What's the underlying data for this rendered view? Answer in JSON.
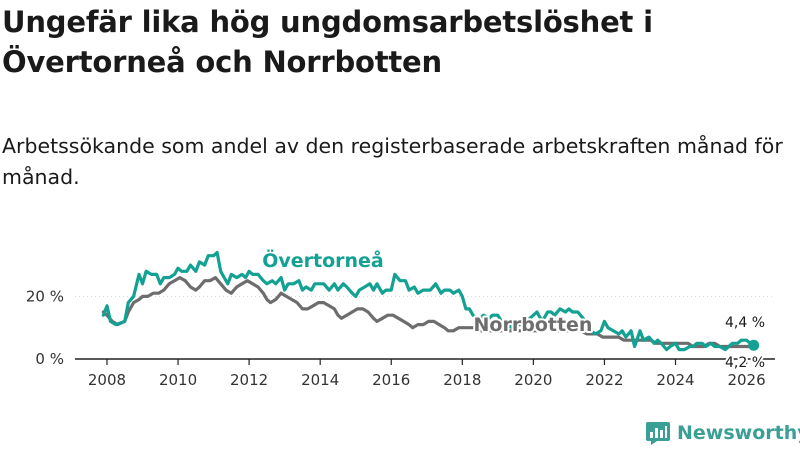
{
  "title": "Ungefär lika hög ungdomsarbetslöshet i Övertorneå och Norrbotten",
  "subtitle": "Arbetssökande som andel av den registerbaserade arbetskraften månad för månad.",
  "brand": "Newsworthy",
  "colors": {
    "overtornea": "#12a192",
    "norrbotten": "#6d6d6d",
    "axis": "#222222",
    "brand": "#3a9f95"
  },
  "chart_data": {
    "type": "line",
    "title": "Ungefär lika hög ungdomsarbetslöshet i Övertorneå och Norrbotten",
    "xlabel": "",
    "ylabel": "",
    "xlim": [
      2007.1,
      2026.8
    ],
    "ylim": [
      0,
      38
    ],
    "x_ticks": [
      2008,
      2010,
      2012,
      2014,
      2016,
      2018,
      2020,
      2022,
      2024,
      2026
    ],
    "x_tick_labels": [
      "2008",
      "2010",
      "2012",
      "2014",
      "2016",
      "2018",
      "2020",
      "2022",
      "2024",
      "2026"
    ],
    "y_ticks": [
      0,
      20
    ],
    "y_tick_labels": [
      "0 %",
      "20 %"
    ],
    "series": [
      {
        "name": "Övertorneå",
        "end_label": "4,4 %",
        "points": [
          [
            2007.9,
            14
          ],
          [
            2008.0,
            17
          ],
          [
            2008.1,
            12
          ],
          [
            2008.25,
            11
          ],
          [
            2008.5,
            12
          ],
          [
            2008.6,
            18
          ],
          [
            2008.75,
            20
          ],
          [
            2008.9,
            27
          ],
          [
            2009.0,
            24
          ],
          [
            2009.1,
            28
          ],
          [
            2009.25,
            27
          ],
          [
            2009.4,
            27
          ],
          [
            2009.5,
            24
          ],
          [
            2009.6,
            26
          ],
          [
            2009.75,
            26
          ],
          [
            2009.9,
            27
          ],
          [
            2010.0,
            29
          ],
          [
            2010.1,
            28
          ],
          [
            2010.25,
            28
          ],
          [
            2010.35,
            30
          ],
          [
            2010.5,
            28
          ],
          [
            2010.6,
            31
          ],
          [
            2010.75,
            30
          ],
          [
            2010.85,
            33
          ],
          [
            2011.0,
            33
          ],
          [
            2011.1,
            34
          ],
          [
            2011.2,
            28
          ],
          [
            2011.3,
            26
          ],
          [
            2011.4,
            24
          ],
          [
            2011.5,
            27
          ],
          [
            2011.65,
            26
          ],
          [
            2011.8,
            27
          ],
          [
            2011.9,
            26
          ],
          [
            2012.0,
            28
          ],
          [
            2012.1,
            27
          ],
          [
            2012.25,
            27
          ],
          [
            2012.4,
            25
          ],
          [
            2012.5,
            24
          ],
          [
            2012.65,
            25
          ],
          [
            2012.75,
            24
          ],
          [
            2012.9,
            26
          ],
          [
            2013.0,
            22
          ],
          [
            2013.1,
            24
          ],
          [
            2013.25,
            24
          ],
          [
            2013.4,
            25
          ],
          [
            2013.5,
            22
          ],
          [
            2013.6,
            23
          ],
          [
            2013.75,
            22
          ],
          [
            2013.85,
            24
          ],
          [
            2014.0,
            24
          ],
          [
            2014.1,
            24
          ],
          [
            2014.25,
            22
          ],
          [
            2014.4,
            24
          ],
          [
            2014.5,
            22
          ],
          [
            2014.65,
            24
          ],
          [
            2014.75,
            23
          ],
          [
            2014.9,
            21
          ],
          [
            2015.0,
            20
          ],
          [
            2015.1,
            22
          ],
          [
            2015.25,
            23
          ],
          [
            2015.4,
            24
          ],
          [
            2015.5,
            22
          ],
          [
            2015.6,
            24
          ],
          [
            2015.75,
            21
          ],
          [
            2015.85,
            22
          ],
          [
            2016.0,
            22
          ],
          [
            2016.1,
            27
          ],
          [
            2016.25,
            25
          ],
          [
            2016.4,
            25
          ],
          [
            2016.5,
            22
          ],
          [
            2016.65,
            23
          ],
          [
            2016.75,
            21
          ],
          [
            2016.9,
            22
          ],
          [
            2017.0,
            22
          ],
          [
            2017.1,
            22
          ],
          [
            2017.25,
            24
          ],
          [
            2017.4,
            21
          ],
          [
            2017.5,
            22
          ],
          [
            2017.65,
            22
          ],
          [
            2017.75,
            21
          ],
          [
            2017.9,
            22
          ],
          [
            2018.0,
            20
          ],
          [
            2018.1,
            16
          ],
          [
            2018.2,
            16
          ],
          [
            2018.3,
            14
          ],
          [
            2018.4,
            13
          ],
          [
            2018.5,
            13
          ],
          [
            2018.6,
            14
          ],
          [
            2018.75,
            13
          ],
          [
            2018.85,
            14
          ],
          [
            2019.0,
            14
          ],
          [
            2019.1,
            12
          ],
          [
            2019.25,
            11
          ],
          [
            2019.4,
            10
          ],
          [
            2019.5,
            12
          ],
          [
            2019.6,
            11
          ],
          [
            2019.75,
            11
          ],
          [
            2019.9,
            13
          ],
          [
            2020.0,
            14
          ],
          [
            2020.1,
            15
          ],
          [
            2020.25,
            12
          ],
          [
            2020.4,
            15
          ],
          [
            2020.5,
            15
          ],
          [
            2020.6,
            14
          ],
          [
            2020.75,
            16
          ],
          [
            2020.9,
            15
          ],
          [
            2021.0,
            16
          ],
          [
            2021.1,
            15
          ],
          [
            2021.25,
            15
          ],
          [
            2021.4,
            13
          ],
          [
            2021.5,
            11
          ],
          [
            2021.6,
            9
          ],
          [
            2021.75,
            8
          ],
          [
            2021.9,
            9
          ],
          [
            2022.0,
            12
          ],
          [
            2022.1,
            10
          ],
          [
            2022.25,
            9
          ],
          [
            2022.4,
            8
          ],
          [
            2022.5,
            9
          ],
          [
            2022.6,
            7
          ],
          [
            2022.75,
            9
          ],
          [
            2022.85,
            4
          ],
          [
            2023.0,
            9
          ],
          [
            2023.1,
            6
          ],
          [
            2023.25,
            7
          ],
          [
            2023.4,
            5
          ],
          [
            2023.5,
            6
          ],
          [
            2023.6,
            5
          ],
          [
            2023.75,
            3
          ],
          [
            2023.85,
            4
          ],
          [
            2024.0,
            5
          ],
          [
            2024.1,
            3
          ],
          [
            2024.25,
            3
          ],
          [
            2024.4,
            4
          ],
          [
            2024.5,
            4
          ],
          [
            2024.6,
            5
          ],
          [
            2024.75,
            5
          ],
          [
            2024.85,
            4
          ],
          [
            2025.0,
            5
          ],
          [
            2025.1,
            4
          ],
          [
            2025.25,
            4
          ],
          [
            2025.4,
            3
          ],
          [
            2025.5,
            4
          ],
          [
            2025.6,
            5
          ],
          [
            2025.75,
            5
          ],
          [
            2025.85,
            6
          ],
          [
            2026.0,
            6
          ],
          [
            2026.1,
            5
          ],
          [
            2026.2,
            4.4
          ]
        ]
      },
      {
        "name": "Norrbotten",
        "end_label": "4,2 %",
        "points": [
          [
            2007.9,
            15
          ],
          [
            2008.0,
            14
          ],
          [
            2008.15,
            12
          ],
          [
            2008.3,
            11
          ],
          [
            2008.5,
            12
          ],
          [
            2008.6,
            15
          ],
          [
            2008.75,
            18
          ],
          [
            2008.9,
            19
          ],
          [
            2009.0,
            20
          ],
          [
            2009.15,
            20
          ],
          [
            2009.3,
            21
          ],
          [
            2009.45,
            21
          ],
          [
            2009.6,
            22
          ],
          [
            2009.75,
            24
          ],
          [
            2009.9,
            25
          ],
          [
            2010.05,
            26
          ],
          [
            2010.2,
            25
          ],
          [
            2010.35,
            23
          ],
          [
            2010.5,
            22
          ],
          [
            2010.6,
            23
          ],
          [
            2010.75,
            25
          ],
          [
            2010.9,
            25
          ],
          [
            2011.05,
            26
          ],
          [
            2011.2,
            24
          ],
          [
            2011.35,
            22
          ],
          [
            2011.5,
            21
          ],
          [
            2011.65,
            23
          ],
          [
            2011.8,
            24
          ],
          [
            2011.95,
            25
          ],
          [
            2012.1,
            24
          ],
          [
            2012.25,
            23
          ],
          [
            2012.4,
            21
          ],
          [
            2012.5,
            19
          ],
          [
            2012.6,
            18
          ],
          [
            2012.75,
            19
          ],
          [
            2012.9,
            21
          ],
          [
            2013.05,
            20
          ],
          [
            2013.2,
            19
          ],
          [
            2013.35,
            18
          ],
          [
            2013.5,
            16
          ],
          [
            2013.65,
            16
          ],
          [
            2013.8,
            17
          ],
          [
            2013.95,
            18
          ],
          [
            2014.1,
            18
          ],
          [
            2014.25,
            17
          ],
          [
            2014.4,
            16
          ],
          [
            2014.5,
            14
          ],
          [
            2014.6,
            13
          ],
          [
            2014.75,
            14
          ],
          [
            2014.9,
            15
          ],
          [
            2015.05,
            16
          ],
          [
            2015.2,
            16
          ],
          [
            2015.35,
            15
          ],
          [
            2015.5,
            13
          ],
          [
            2015.6,
            12
          ],
          [
            2015.75,
            13
          ],
          [
            2015.9,
            14
          ],
          [
            2016.05,
            14
          ],
          [
            2016.2,
            13
          ],
          [
            2016.35,
            12
          ],
          [
            2016.5,
            11
          ],
          [
            2016.6,
            10
          ],
          [
            2016.75,
            11
          ],
          [
            2016.9,
            11
          ],
          [
            2017.05,
            12
          ],
          [
            2017.2,
            12
          ],
          [
            2017.35,
            11
          ],
          [
            2017.5,
            10
          ],
          [
            2017.6,
            9
          ],
          [
            2017.75,
            9
          ],
          [
            2017.9,
            10
          ],
          [
            2018.05,
            10
          ],
          [
            2018.2,
            10
          ],
          [
            2018.35,
            10
          ],
          [
            2018.5,
            9
          ],
          [
            2018.65,
            9
          ],
          [
            2018.8,
            9
          ],
          [
            2018.95,
            9
          ],
          [
            2019.1,
            9
          ],
          [
            2019.25,
            9
          ],
          [
            2019.4,
            9
          ],
          [
            2019.55,
            9
          ],
          [
            2019.7,
            9
          ],
          [
            2019.85,
            9
          ],
          [
            2020.0,
            9
          ],
          [
            2020.15,
            9
          ],
          [
            2020.3,
            10
          ],
          [
            2020.45,
            10
          ],
          [
            2020.6,
            9
          ],
          [
            2020.75,
            9
          ],
          [
            2020.9,
            9
          ],
          [
            2021.05,
            9
          ],
          [
            2021.2,
            9
          ],
          [
            2021.35,
            9
          ],
          [
            2021.5,
            8
          ],
          [
            2021.65,
            8
          ],
          [
            2021.8,
            8
          ],
          [
            2021.95,
            7
          ],
          [
            2022.1,
            7
          ],
          [
            2022.25,
            7
          ],
          [
            2022.4,
            7
          ],
          [
            2022.55,
            6
          ],
          [
            2022.7,
            6
          ],
          [
            2022.85,
            6
          ],
          [
            2023.0,
            6
          ],
          [
            2023.15,
            6
          ],
          [
            2023.3,
            6
          ],
          [
            2023.45,
            5
          ],
          [
            2023.6,
            5
          ],
          [
            2023.75,
            5
          ],
          [
            2023.9,
            5
          ],
          [
            2024.05,
            5
          ],
          [
            2024.2,
            5
          ],
          [
            2024.35,
            5
          ],
          [
            2024.5,
            4
          ],
          [
            2024.65,
            4
          ],
          [
            2024.8,
            4
          ],
          [
            2024.95,
            5
          ],
          [
            2025.1,
            5
          ],
          [
            2025.25,
            4
          ],
          [
            2025.4,
            4
          ],
          [
            2025.55,
            4
          ],
          [
            2025.7,
            4
          ],
          [
            2025.85,
            4
          ],
          [
            2026.0,
            4
          ],
          [
            2026.1,
            4
          ],
          [
            2026.2,
            4.2
          ]
        ]
      }
    ]
  }
}
